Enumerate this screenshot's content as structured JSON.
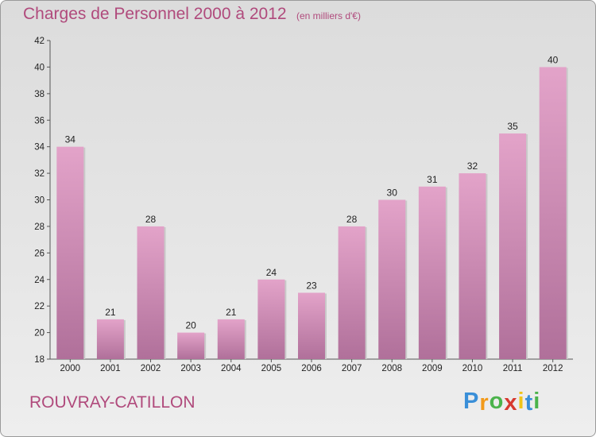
{
  "chart_data": {
    "type": "bar",
    "title": "Charges de Personnel 2000 à 2012",
    "subtitle": "(en milliers d'€)",
    "categories": [
      "2000",
      "2001",
      "2002",
      "2003",
      "2004",
      "2005",
      "2006",
      "2007",
      "2008",
      "2009",
      "2010",
      "2011",
      "2012"
    ],
    "values": [
      34,
      21,
      28,
      20,
      21,
      24,
      23,
      28,
      30,
      31,
      32,
      35,
      40
    ],
    "ylim": [
      18,
      42
    ],
    "yticks": [
      18,
      20,
      22,
      24,
      26,
      28,
      30,
      32,
      34,
      36,
      38,
      40,
      42
    ],
    "grid": false,
    "bar_color_top": "#e3a3c9",
    "bar_color_bottom": "#b0709a"
  },
  "commune": "ROUVRAY-CATILLON",
  "logo": {
    "letters": [
      "P",
      "r",
      "o",
      "x",
      "i",
      "t",
      "i"
    ],
    "colors": [
      "#3a8fd8",
      "#f29a1a",
      "#4bb34b",
      "#d6392f",
      "#f0c419",
      "#3a8fd8",
      "#4bb34b"
    ]
  },
  "colors": {
    "accent": "#b04a7c",
    "axis": "#555555"
  }
}
